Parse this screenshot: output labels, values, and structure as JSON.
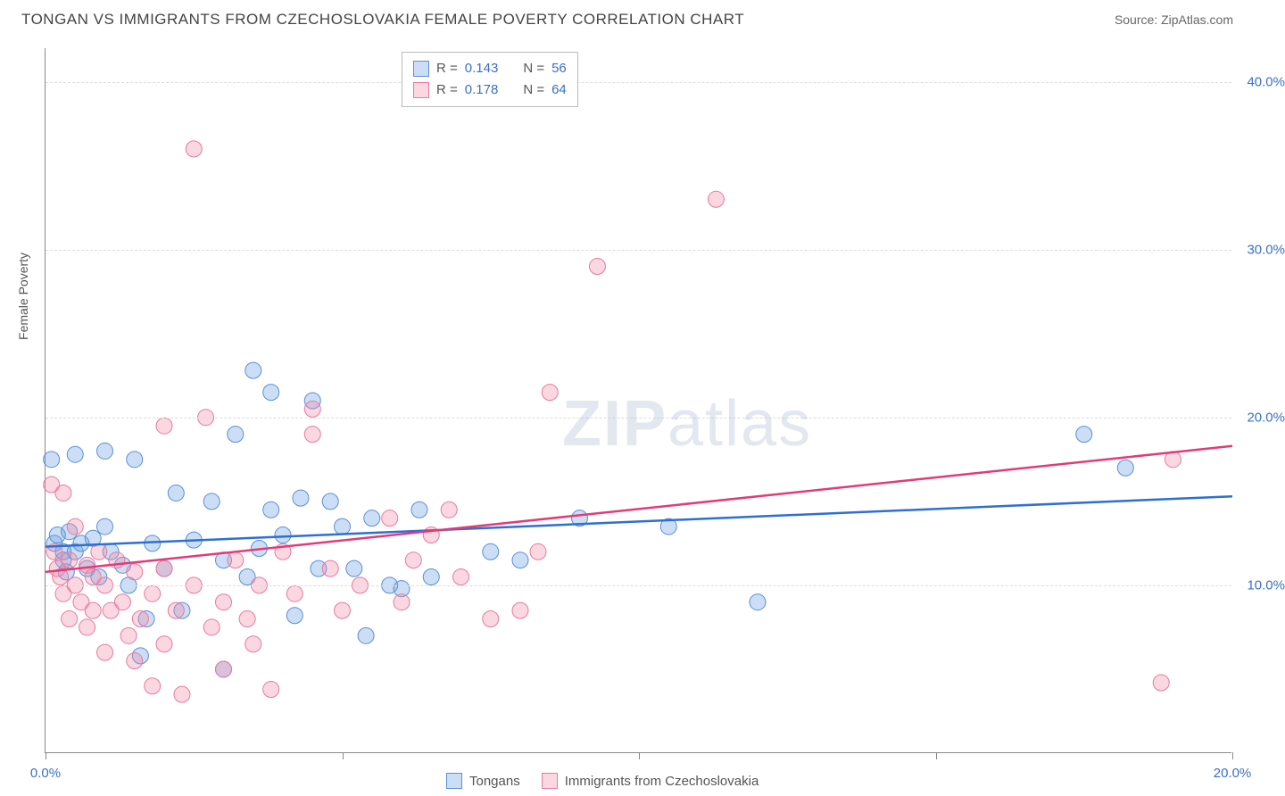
{
  "header": {
    "title": "TONGAN VS IMMIGRANTS FROM CZECHOSLOVAKIA FEMALE POVERTY CORRELATION CHART",
    "source": "Source: ZipAtlas.com"
  },
  "y_axis": {
    "title": "Female Poverty"
  },
  "watermark": {
    "zip": "ZIP",
    "atlas": "atlas"
  },
  "chart": {
    "type": "scatter",
    "background_color": "#ffffff",
    "grid_color": "#dddddd",
    "axis_color": "#888888",
    "x_min": 0,
    "x_max": 20,
    "y_min": 0,
    "y_max": 42,
    "x_ticks": [
      0,
      5,
      10,
      15,
      20
    ],
    "x_tick_labels": [
      "0.0%",
      "",
      "",
      "",
      "20.0%"
    ],
    "y_grid": [
      10,
      20,
      30,
      40
    ],
    "y_tick_labels": [
      "10.0%",
      "20.0%",
      "30.0%",
      "40.0%"
    ],
    "series": [
      {
        "name": "Tongans",
        "color_fill": "rgba(110,160,225,0.35)",
        "color_stroke": "#5b8fd6",
        "marker_radius": 9,
        "R": "0.143",
        "N": "56",
        "trend": {
          "x1": 0,
          "y1": 12.3,
          "x2": 20,
          "y2": 15.3,
          "color": "#2f6fd0",
          "width": 2.5
        },
        "points": [
          [
            0.1,
            17.5
          ],
          [
            0.15,
            12.5
          ],
          [
            0.2,
            13.0
          ],
          [
            0.3,
            11.5
          ],
          [
            0.3,
            12.0
          ],
          [
            0.35,
            10.8
          ],
          [
            0.4,
            13.2
          ],
          [
            0.5,
            12.0
          ],
          [
            0.5,
            17.8
          ],
          [
            0.6,
            12.5
          ],
          [
            0.7,
            11.0
          ],
          [
            0.8,
            12.8
          ],
          [
            0.9,
            10.5
          ],
          [
            1.0,
            13.5
          ],
          [
            1.0,
            18.0
          ],
          [
            1.1,
            12.0
          ],
          [
            1.3,
            11.2
          ],
          [
            1.4,
            10.0
          ],
          [
            1.5,
            17.5
          ],
          [
            1.6,
            5.8
          ],
          [
            1.7,
            8.0
          ],
          [
            1.8,
            12.5
          ],
          [
            2.0,
            11.0
          ],
          [
            2.2,
            15.5
          ],
          [
            2.3,
            8.5
          ],
          [
            2.5,
            12.7
          ],
          [
            2.8,
            15.0
          ],
          [
            3.0,
            11.5
          ],
          [
            3.0,
            5.0
          ],
          [
            3.2,
            19.0
          ],
          [
            3.4,
            10.5
          ],
          [
            3.5,
            22.8
          ],
          [
            3.6,
            12.2
          ],
          [
            3.8,
            14.5
          ],
          [
            3.8,
            21.5
          ],
          [
            4.0,
            13.0
          ],
          [
            4.2,
            8.2
          ],
          [
            4.3,
            15.2
          ],
          [
            4.5,
            21.0
          ],
          [
            4.6,
            11.0
          ],
          [
            4.8,
            15.0
          ],
          [
            5.0,
            13.5
          ],
          [
            5.2,
            11.0
          ],
          [
            5.4,
            7.0
          ],
          [
            5.5,
            14.0
          ],
          [
            5.8,
            10.0
          ],
          [
            6.0,
            9.8
          ],
          [
            6.3,
            14.5
          ],
          [
            6.5,
            10.5
          ],
          [
            7.5,
            12.0
          ],
          [
            8.0,
            11.5
          ],
          [
            9.0,
            14.0
          ],
          [
            10.5,
            13.5
          ],
          [
            12.0,
            9.0
          ],
          [
            17.5,
            19.0
          ],
          [
            18.2,
            17.0
          ]
        ]
      },
      {
        "name": "Immigrants from Czechoslovakia",
        "color_fill": "rgba(240,140,170,0.35)",
        "color_stroke": "#e77aa0",
        "marker_radius": 9,
        "R": "0.178",
        "N": "64",
        "trend": {
          "x1": 0,
          "y1": 10.8,
          "x2": 20,
          "y2": 18.3,
          "color": "#e23b77",
          "width": 2.5
        },
        "points": [
          [
            0.1,
            16.0
          ],
          [
            0.15,
            12.0
          ],
          [
            0.2,
            11.0
          ],
          [
            0.25,
            10.5
          ],
          [
            0.3,
            15.5
          ],
          [
            0.3,
            9.5
          ],
          [
            0.4,
            11.5
          ],
          [
            0.4,
            8.0
          ],
          [
            0.5,
            10.0
          ],
          [
            0.5,
            13.5
          ],
          [
            0.6,
            9.0
          ],
          [
            0.7,
            11.2
          ],
          [
            0.7,
            7.5
          ],
          [
            0.8,
            10.5
          ],
          [
            0.8,
            8.5
          ],
          [
            0.9,
            12.0
          ],
          [
            1.0,
            6.0
          ],
          [
            1.0,
            10.0
          ],
          [
            1.1,
            8.5
          ],
          [
            1.2,
            11.5
          ],
          [
            1.3,
            9.0
          ],
          [
            1.4,
            7.0
          ],
          [
            1.5,
            10.8
          ],
          [
            1.5,
            5.5
          ],
          [
            1.6,
            8.0
          ],
          [
            1.8,
            9.5
          ],
          [
            1.8,
            4.0
          ],
          [
            2.0,
            11.0
          ],
          [
            2.0,
            6.5
          ],
          [
            2.0,
            19.5
          ],
          [
            2.2,
            8.5
          ],
          [
            2.3,
            3.5
          ],
          [
            2.5,
            10.0
          ],
          [
            2.5,
            36.0
          ],
          [
            2.7,
            20.0
          ],
          [
            2.8,
            7.5
          ],
          [
            3.0,
            9.0
          ],
          [
            3.0,
            5.0
          ],
          [
            3.2,
            11.5
          ],
          [
            3.4,
            8.0
          ],
          [
            3.5,
            6.5
          ],
          [
            3.6,
            10.0
          ],
          [
            3.8,
            3.8
          ],
          [
            4.0,
            12.0
          ],
          [
            4.2,
            9.5
          ],
          [
            4.5,
            20.5
          ],
          [
            4.5,
            19.0
          ],
          [
            4.8,
            11.0
          ],
          [
            5.0,
            8.5
          ],
          [
            5.3,
            10.0
          ],
          [
            5.8,
            14.0
          ],
          [
            6.0,
            9.0
          ],
          [
            6.2,
            11.5
          ],
          [
            6.5,
            13.0
          ],
          [
            7.0,
            10.5
          ],
          [
            7.5,
            8.0
          ],
          [
            8.0,
            8.5
          ],
          [
            8.3,
            12.0
          ],
          [
            8.5,
            21.5
          ],
          [
            9.3,
            29.0
          ],
          [
            11.3,
            33.0
          ],
          [
            18.8,
            4.2
          ],
          [
            19.0,
            17.5
          ],
          [
            6.8,
            14.5
          ]
        ]
      }
    ]
  },
  "legend_top": {
    "rows": [
      {
        "swatch_fill": "rgba(110,160,225,0.35)",
        "swatch_stroke": "#5b8fd6",
        "r_label": "R =",
        "r_value": "0.143",
        "n_label": "N =",
        "n_value": "56"
      },
      {
        "swatch_fill": "rgba(240,140,170,0.35)",
        "swatch_stroke": "#e77aa0",
        "r_label": "R =",
        "r_value": "0.178",
        "n_label": "N =",
        "n_value": "64"
      }
    ]
  },
  "legend_bottom": {
    "items": [
      {
        "swatch_fill": "rgba(110,160,225,0.35)",
        "swatch_stroke": "#5b8fd6",
        "label": "Tongans"
      },
      {
        "swatch_fill": "rgba(240,140,170,0.35)",
        "swatch_stroke": "#e77aa0",
        "label": "Immigrants from Czechoslovakia"
      }
    ]
  }
}
